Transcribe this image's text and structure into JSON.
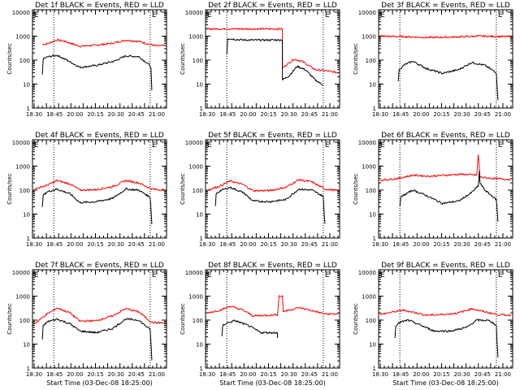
{
  "colors": {
    "background": "#ffffff",
    "axes": "#000000",
    "events": "#000000",
    "lld": "#ff0000"
  },
  "shared": {
    "ylabel": "Counts/sec",
    "xlabel": "Start Time (03-Dec-08 18:25:00)",
    "x_tick_labels": [
      "18:30",
      "18:45",
      "20:00",
      "20:15",
      "20:30",
      "20:45",
      "21:00"
    ],
    "y_tick_labels": [
      "1",
      "10",
      "100",
      "1000",
      "10000"
    ],
    "corner_marks": [
      "E",
      "E"
    ],
    "xlim_minutes": [
      -2,
      162
    ],
    "ylim_log10": [
      0,
      4.1
    ],
    "dotted_lines_x_minutes": [
      24,
      142
    ]
  },
  "chart_data": [
    {
      "type": "line",
      "title": "Det 1f BLACK = Events, RED = LLD",
      "show_xlabel": false,
      "series": [
        {
          "color": "#ff0000",
          "points": [
            [
              10,
              450
            ],
            [
              16,
              480
            ],
            [
              28,
              700
            ],
            [
              38,
              600
            ],
            [
              56,
              380
            ],
            [
              76,
              420
            ],
            [
              95,
              500
            ],
            [
              112,
              680
            ],
            [
              128,
              600
            ],
            [
              148,
              400
            ],
            [
              160,
              400
            ]
          ]
        },
        {
          "color": "#000000",
          "points": [
            [
              10,
              25
            ],
            [
              11,
              110
            ],
            [
              16,
              135
            ],
            [
              28,
              160
            ],
            [
              40,
              100
            ],
            [
              56,
              50
            ],
            [
              76,
              60
            ],
            [
              98,
              90
            ],
            [
              112,
              150
            ],
            [
              128,
              140
            ],
            [
              142,
              60
            ],
            [
              143,
              40
            ],
            [
              144,
              5
            ]
          ]
        }
      ]
    },
    {
      "type": "line",
      "title": "Det 2f BLACK = Events, RED = LLD",
      "show_xlabel": false,
      "series": [
        {
          "color": "#ff0000",
          "points": [
            [
              0,
              2000
            ],
            [
              90,
              2000
            ],
            [
              92,
              2000
            ],
            [
              92,
              45
            ],
            [
              96,
              60
            ],
            [
              106,
              110
            ],
            [
              116,
              90
            ],
            [
              132,
              40
            ],
            [
              148,
              35
            ],
            [
              160,
              30
            ]
          ]
        },
        {
          "color": "#000000",
          "points": [
            [
              24,
              180
            ],
            [
              25,
              800
            ],
            [
              40,
              700
            ],
            [
              60,
              680
            ],
            [
              90,
              700
            ],
            [
              92,
              700
            ],
            [
              92,
              15
            ],
            [
              100,
              22
            ],
            [
              110,
              55
            ],
            [
              120,
              40
            ],
            [
              132,
              15
            ],
            [
              142,
              9
            ]
          ]
        }
      ]
    },
    {
      "type": "line",
      "title": "Det 3f BLACK = Events, RED = LLD",
      "show_xlabel": false,
      "series": [
        {
          "color": "#ff0000",
          "points": [
            [
              0,
              1000
            ],
            [
              30,
              950
            ],
            [
              60,
              880
            ],
            [
              90,
              920
            ],
            [
              120,
              1000
            ],
            [
              160,
              950
            ]
          ]
        },
        {
          "color": "#000000",
          "points": [
            [
              22,
              12
            ],
            [
              23,
              40
            ],
            [
              30,
              65
            ],
            [
              40,
              90
            ],
            [
              56,
              45
            ],
            [
              76,
              28
            ],
            [
              96,
              40
            ],
            [
              112,
              80
            ],
            [
              128,
              60
            ],
            [
              142,
              30
            ],
            [
              143,
              8
            ],
            [
              144,
              2
            ]
          ]
        }
      ]
    },
    {
      "type": "line",
      "title": "Det 4f BLACK = Events, RED = LLD",
      "show_xlabel": false,
      "series": [
        {
          "color": "#ff0000",
          "points": [
            [
              0,
              110
            ],
            [
              16,
              160
            ],
            [
              28,
              250
            ],
            [
              44,
              180
            ],
            [
              56,
              100
            ],
            [
              76,
              105
            ],
            [
              96,
              140
            ],
            [
              112,
              250
            ],
            [
              128,
              200
            ],
            [
              144,
              110
            ],
            [
              160,
              100
            ]
          ]
        },
        {
          "color": "#000000",
          "points": [
            [
              10,
              18
            ],
            [
              11,
              60
            ],
            [
              16,
              85
            ],
            [
              28,
              110
            ],
            [
              44,
              70
            ],
            [
              56,
              30
            ],
            [
              76,
              33
            ],
            [
              96,
              45
            ],
            [
              112,
              110
            ],
            [
              128,
              100
            ],
            [
              142,
              50
            ],
            [
              143,
              15
            ],
            [
              144,
              4
            ]
          ]
        }
      ]
    },
    {
      "type": "line",
      "title": "Det 5f BLACK = Events, RED = LLD",
      "show_xlabel": false,
      "series": [
        {
          "color": "#ff0000",
          "points": [
            [
              0,
              100
            ],
            [
              16,
              150
            ],
            [
              28,
              240
            ],
            [
              44,
              170
            ],
            [
              56,
              95
            ],
            [
              76,
              95
            ],
            [
              96,
              130
            ],
            [
              112,
              270
            ],
            [
              128,
              220
            ],
            [
              144,
              110
            ],
            [
              160,
              95
            ]
          ]
        },
        {
          "color": "#000000",
          "points": [
            [
              10,
              20
            ],
            [
              11,
              70
            ],
            [
              16,
              95
            ],
            [
              28,
              130
            ],
            [
              44,
              80
            ],
            [
              56,
              35
            ],
            [
              76,
              33
            ],
            [
              96,
              40
            ],
            [
              112,
              110
            ],
            [
              128,
              100
            ],
            [
              142,
              55
            ],
            [
              143,
              12
            ],
            [
              144,
              4
            ]
          ]
        }
      ]
    },
    {
      "type": "line",
      "title": "Det 6f BLACK = Events, RED = LLD",
      "show_xlabel": false,
      "series": [
        {
          "color": "#ff0000",
          "points": [
            [
              0,
              260
            ],
            [
              20,
              300
            ],
            [
              40,
              420
            ],
            [
              60,
              380
            ],
            [
              80,
              420
            ],
            [
              100,
              460
            ],
            [
              118,
              420
            ],
            [
              120,
              3000
            ],
            [
              122,
              350
            ],
            [
              140,
              300
            ],
            [
              160,
              280
            ]
          ]
        },
        {
          "color": "#000000",
          "points": [
            [
              24,
              22
            ],
            [
              25,
              50
            ],
            [
              30,
              65
            ],
            [
              40,
              100
            ],
            [
              56,
              60
            ],
            [
              76,
              28
            ],
            [
              96,
              35
            ],
            [
              112,
              80
            ],
            [
              120,
              150
            ],
            [
              121,
              600
            ],
            [
              122,
              200
            ],
            [
              128,
              100
            ],
            [
              142,
              40
            ],
            [
              143,
              15
            ],
            [
              144,
              5
            ]
          ]
        }
      ]
    },
    {
      "type": "line",
      "title": "Det 7f BLACK = Events, RED = LLD",
      "show_xlabel": true,
      "series": [
        {
          "color": "#ff0000",
          "points": [
            [
              0,
              70
            ],
            [
              16,
              180
            ],
            [
              28,
              320
            ],
            [
              44,
              200
            ],
            [
              56,
              90
            ],
            [
              76,
              95
            ],
            [
              96,
              150
            ],
            [
              112,
              300
            ],
            [
              128,
              220
            ],
            [
              144,
              80
            ],
            [
              160,
              75
            ]
          ]
        },
        {
          "color": "#000000",
          "points": [
            [
              10,
              15
            ],
            [
              11,
              55
            ],
            [
              16,
              85
            ],
            [
              28,
              110
            ],
            [
              44,
              70
            ],
            [
              56,
              35
            ],
            [
              76,
              30
            ],
            [
              96,
              45
            ],
            [
              112,
              110
            ],
            [
              128,
              100
            ],
            [
              142,
              40
            ],
            [
              143,
              10
            ],
            [
              144,
              2
            ]
          ]
        }
      ]
    },
    {
      "type": "line",
      "title": "Det 8f BLACK = Events, RED = LLD",
      "show_xlabel": true,
      "series": [
        {
          "color": "#ff0000",
          "points": [
            [
              0,
              200
            ],
            [
              16,
              260
            ],
            [
              28,
              380
            ],
            [
              44,
              260
            ],
            [
              56,
              150
            ],
            [
              76,
              160
            ],
            [
              86,
              170
            ],
            [
              88,
              1000
            ],
            [
              92,
              1000
            ],
            [
              93,
              230
            ],
            [
              98,
              250
            ],
            [
              112,
              330
            ],
            [
              128,
              250
            ],
            [
              144,
              180
            ],
            [
              160,
              180
            ]
          ]
        },
        {
          "color": "#000000",
          "points": [
            [
              18,
              20
            ],
            [
              19,
              60
            ],
            [
              24,
              75
            ],
            [
              34,
              95
            ],
            [
              50,
              60
            ],
            [
              66,
              30
            ],
            [
              86,
              30
            ],
            [
              86,
              18
            ]
          ]
        }
      ]
    },
    {
      "type": "line",
      "title": "Det 9f BLACK = Events, RED = LLD",
      "show_xlabel": true,
      "series": [
        {
          "color": "#ff0000",
          "points": [
            [
              0,
              170
            ],
            [
              16,
              220
            ],
            [
              28,
              260
            ],
            [
              44,
              200
            ],
            [
              56,
              160
            ],
            [
              76,
              170
            ],
            [
              96,
              200
            ],
            [
              112,
              300
            ],
            [
              128,
              220
            ],
            [
              144,
              170
            ],
            [
              160,
              160
            ]
          ]
        },
        {
          "color": "#000000",
          "points": [
            [
              18,
              18
            ],
            [
              19,
              60
            ],
            [
              24,
              80
            ],
            [
              34,
              100
            ],
            [
              50,
              60
            ],
            [
              66,
              35
            ],
            [
              86,
              35
            ],
            [
              106,
              50
            ],
            [
              118,
              100
            ],
            [
              134,
              95
            ],
            [
              142,
              60
            ],
            [
              143,
              10
            ],
            [
              144,
              3
            ]
          ]
        }
      ]
    }
  ]
}
